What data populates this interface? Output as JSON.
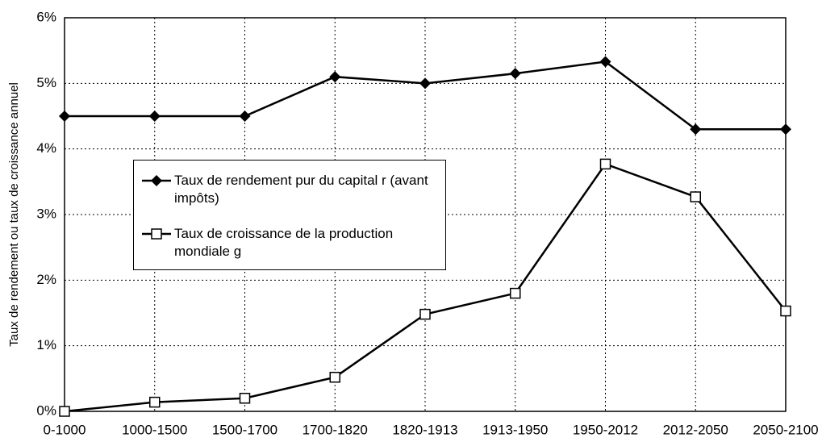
{
  "chart_data": {
    "type": "line",
    "y_label": "Taux de rendement ou taux de croissance annuel",
    "categories": [
      "0-1000",
      "1000-1500",
      "1500-1700",
      "1700-1820",
      "1820-1913",
      "1913-1950",
      "1950-2012",
      "2012-2050",
      "2050-2100"
    ],
    "series": [
      {
        "name": "Taux de rendement pur du capital r (avant impôts)",
        "color": "#000000",
        "marker": "diamond",
        "values": [
          4.5,
          4.5,
          4.5,
          5.1,
          5.0,
          5.15,
          5.33,
          4.3,
          4.3
        ]
      },
      {
        "name": "Taux de croissance de la production mondiale g",
        "color": "#000000",
        "marker": "square",
        "values": [
          0,
          0.14,
          0.2,
          0.52,
          1.48,
          1.8,
          3.77,
          3.27,
          1.53
        ]
      }
    ],
    "ylim": [
      0,
      6
    ],
    "yticks": [
      {
        "value": 0,
        "label": "0%"
      },
      {
        "value": 1,
        "label": "1%"
      },
      {
        "value": 2,
        "label": "2%"
      },
      {
        "value": 3,
        "label": "3%"
      },
      {
        "value": 4,
        "label": "4%"
      },
      {
        "value": 5,
        "label": "5%"
      },
      {
        "value": 6,
        "label": "6%"
      }
    ],
    "grid": true
  }
}
